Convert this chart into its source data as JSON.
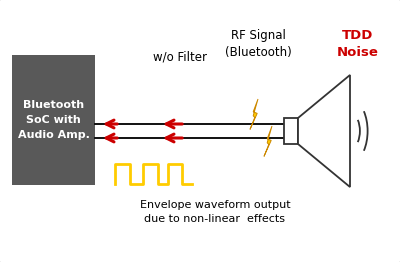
{
  "box_color": "#595959",
  "box_text": "Bluetooth\nSoC with\nAudio Amp.",
  "box_text_color": "#ffffff",
  "wo_filter_text": "w/o Filter",
  "rf_signal_text": "RF Signal\n(Bluetooth)",
  "tdd_noise_text": "TDD\nNoise",
  "tdd_noise_color": "#cc0000",
  "envelope_text": "Envelope waveform output\ndue to non-linear  effects",
  "arrow_color": "#cc0000",
  "lightning_color": "#ffcc00",
  "lightning_edge": "#cc8800",
  "pulse_color": "#ffcc00",
  "speaker_color": "#333333",
  "line_color": "#111111",
  "border_color": "#bbbbbb",
  "bg_color": "#ffffff"
}
